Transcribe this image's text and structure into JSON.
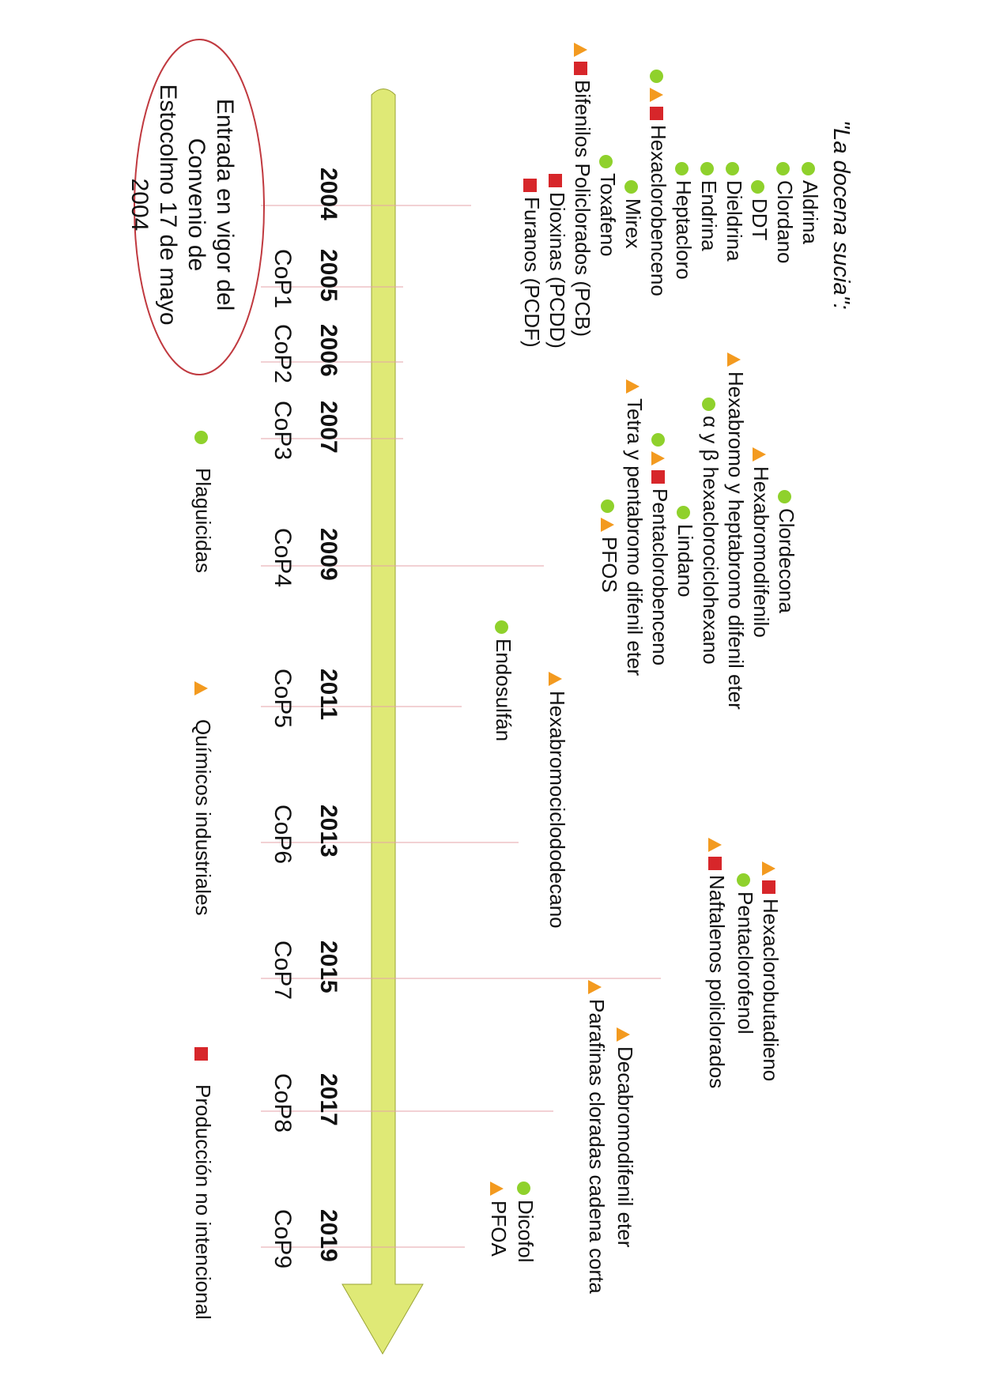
{
  "colors": {
    "plaguicida": "#8fd12c",
    "industrial": "#f39a1f",
    "no_intencional": "#d7262a",
    "arrow": "#dfe976",
    "guide": "#e4a3a8",
    "oval": "#c0393f"
  },
  "title": "\"La docena sucia\":",
  "entry_note": "Entrada en vigor del Convenio de Estocolmo 17 de mayo 2004",
  "timeline": [
    {
      "year": "2004",
      "cop": ""
    },
    {
      "year": "2005",
      "cop": "CoP1"
    },
    {
      "year": "2006",
      "cop": "CoP2"
    },
    {
      "year": "2007",
      "cop": "CoP3"
    },
    {
      "year": "2009",
      "cop": "CoP4"
    },
    {
      "year": "2011",
      "cop": "CoP5"
    },
    {
      "year": "2013",
      "cop": "CoP6"
    },
    {
      "year": "2015",
      "cop": "CoP7"
    },
    {
      "year": "2017",
      "cop": "CoP8"
    },
    {
      "year": "2019",
      "cop": "CoP9"
    }
  ],
  "chemicals": [
    {
      "name": "Aldrina",
      "markers": [
        "dot"
      ]
    },
    {
      "name": "Clordano",
      "markers": [
        "dot"
      ]
    },
    {
      "name": "DDT",
      "markers": [
        "dot"
      ]
    },
    {
      "name": "Dieldrina",
      "markers": [
        "dot"
      ]
    },
    {
      "name": "Endrina",
      "markers": [
        "dot"
      ]
    },
    {
      "name": "Heptacloro",
      "markers": [
        "dot"
      ]
    },
    {
      "name": "Hexaclorobenceno",
      "markers": [
        "dot",
        "tri",
        "sq"
      ]
    },
    {
      "name": "Mirex",
      "markers": [
        "dot"
      ]
    },
    {
      "name": "Toxafeno",
      "markers": [
        "dot"
      ]
    },
    {
      "name": "Bifenilos Policlorados (PCB)",
      "markers": [
        "tri",
        "sq"
      ]
    },
    {
      "name": "Dioxinas (PCDD)",
      "markers": [
        "sq"
      ]
    },
    {
      "name": "Furanos (PCDF)",
      "markers": [
        "sq"
      ]
    },
    {
      "name": "Clordecona",
      "markers": [
        "dot"
      ]
    },
    {
      "name": "Hexabromodifenilo",
      "markers": [
        "tri"
      ]
    },
    {
      "name": "Hexabromo y heptabromo difenil eter",
      "markers": [
        "tri"
      ]
    },
    {
      "name": "α y β hexaclorociclohexano",
      "markers": [
        "dot"
      ]
    },
    {
      "name": "Lindano",
      "markers": [
        "dot"
      ]
    },
    {
      "name": "Pentaclorobenceno",
      "markers": [
        "dot",
        "tri",
        "sq"
      ]
    },
    {
      "name": "Tetra y pentabromo difenil eter",
      "markers": [
        "tri"
      ]
    },
    {
      "name": "PFOS",
      "markers": [
        "dot",
        "tri"
      ]
    },
    {
      "name": "Endosulfán",
      "markers": [
        "dot"
      ]
    },
    {
      "name": "Hexabromociclododecano",
      "markers": [
        "tri"
      ]
    },
    {
      "name": "Hexaclorobutadieno",
      "markers": [
        "tri",
        "sq"
      ]
    },
    {
      "name": "Pentaclorofenol",
      "markers": [
        "dot"
      ]
    },
    {
      "name": "Naftalenos policlorados",
      "markers": [
        "tri",
        "sq"
      ]
    },
    {
      "name": "Decabromodifenil eter",
      "markers": [
        "tri"
      ]
    },
    {
      "name": "Parafinas cloradas cadena corta",
      "markers": [
        "tri"
      ]
    },
    {
      "name": "Dicofol",
      "markers": [
        "dot"
      ]
    },
    {
      "name": "PFOA",
      "markers": [
        "tri"
      ]
    }
  ],
  "legend": [
    {
      "marker": "dot",
      "label": "Plaguicidas"
    },
    {
      "marker": "tri",
      "label": "Químicos industriales"
    },
    {
      "marker": "sq",
      "label": "Producción no intencional"
    }
  ]
}
